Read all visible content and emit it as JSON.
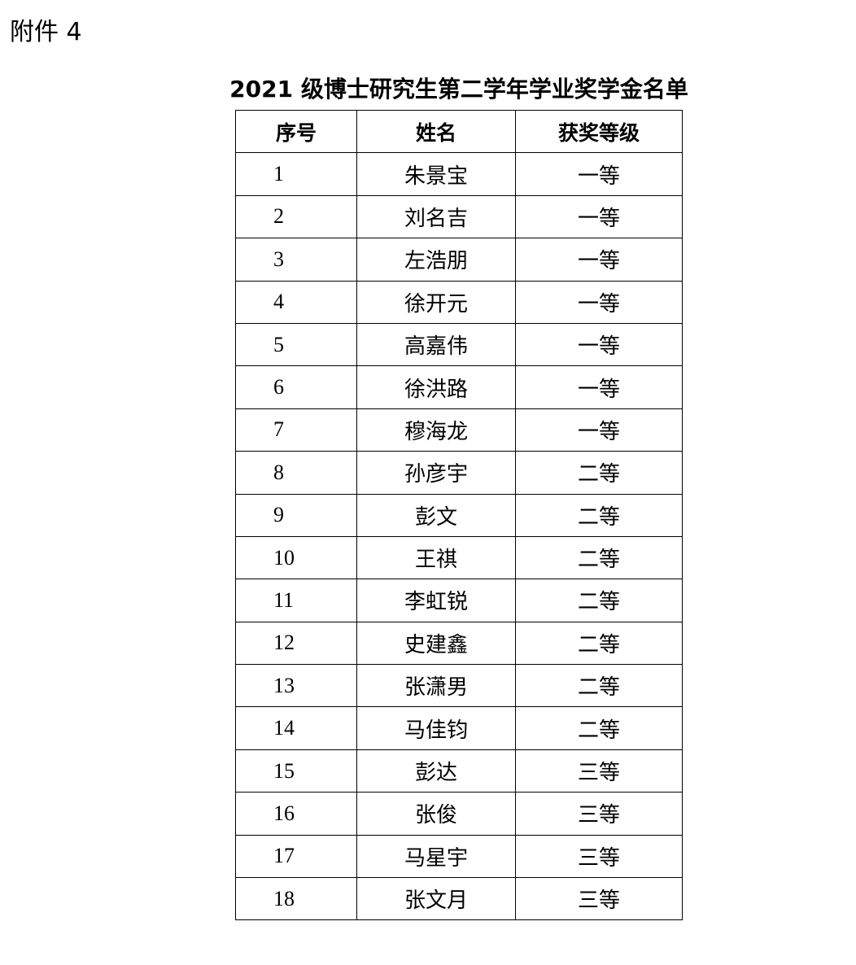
{
  "attachment_label": "附件 4",
  "title": "2021 级博士研究生第二学年学业奖学金名单",
  "table": {
    "headers": [
      "序号",
      "姓名",
      "获奖等级"
    ],
    "rows": [
      [
        "1",
        "朱景宝",
        "一等"
      ],
      [
        "2",
        "刘名吉",
        "一等"
      ],
      [
        "3",
        "左浩朋",
        "一等"
      ],
      [
        "4",
        "徐开元",
        "一等"
      ],
      [
        "5",
        "高嘉伟",
        "一等"
      ],
      [
        "6",
        "徐洪路",
        "一等"
      ],
      [
        "7",
        "穆海龙",
        "一等"
      ],
      [
        "8",
        "孙彦宇",
        "二等"
      ],
      [
        "9",
        "彭文",
        "二等"
      ],
      [
        "10",
        "王祺",
        "二等"
      ],
      [
        "11",
        "李虹锐",
        "二等"
      ],
      [
        "12",
        "史建鑫",
        "二等"
      ],
      [
        "13",
        "张潇男",
        "二等"
      ],
      [
        "14",
        "马佳钧",
        "二等"
      ],
      [
        "15",
        "彭达",
        "三等"
      ],
      [
        "16",
        "张俊",
        "三等"
      ],
      [
        "17",
        "马星宇",
        "三等"
      ],
      [
        "18",
        "张文月",
        "三等"
      ]
    ]
  }
}
